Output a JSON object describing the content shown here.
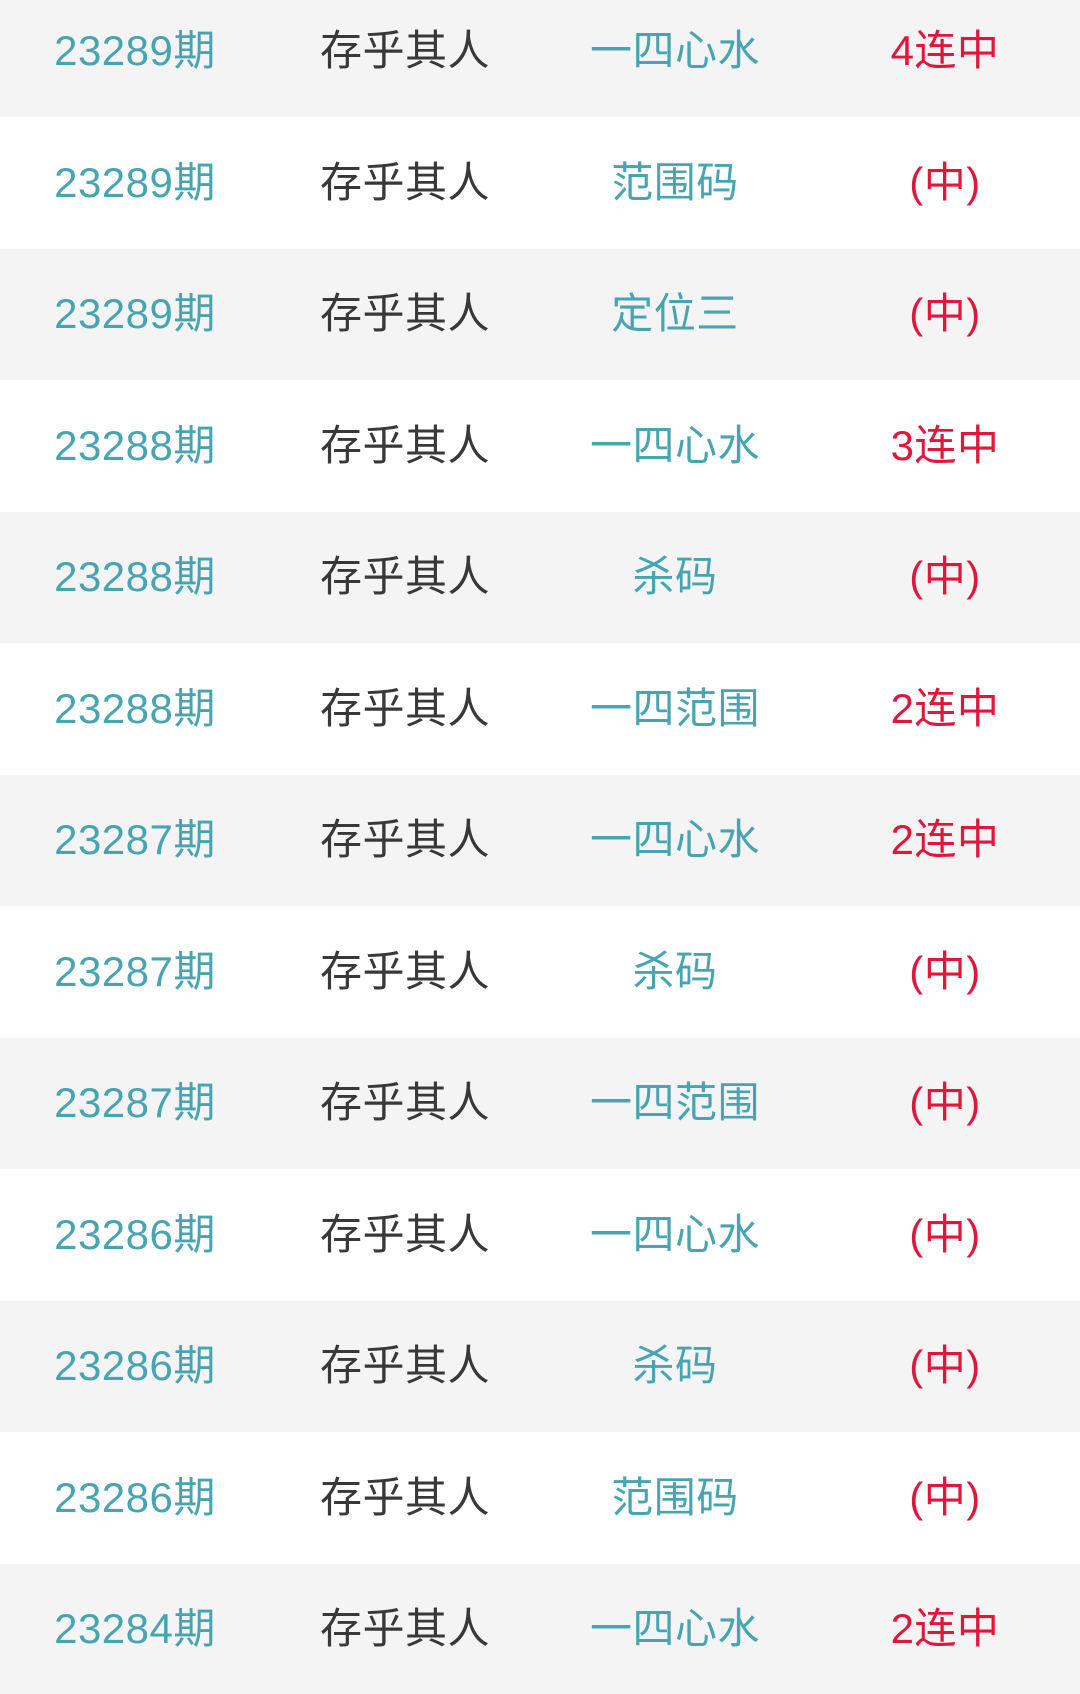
{
  "colors": {
    "accent_teal": "#47a5b1",
    "accent_red": "#e1163c",
    "text_dark": "#383838",
    "row_alt_background": "#f4f4f5",
    "row_background": "#ffffff"
  },
  "history_list": {
    "columns": [
      "period",
      "expert_name",
      "play_type",
      "result"
    ],
    "rows": [
      {
        "period": "23289期",
        "name": "存乎其人",
        "type": "一四心水",
        "result": "4连中"
      },
      {
        "period": "23289期",
        "name": "存乎其人",
        "type": "范围码",
        "result": "(中)"
      },
      {
        "period": "23289期",
        "name": "存乎其人",
        "type": "定位三",
        "result": "(中)"
      },
      {
        "period": "23288期",
        "name": "存乎其人",
        "type": "一四心水",
        "result": "3连中"
      },
      {
        "period": "23288期",
        "name": "存乎其人",
        "type": "杀码",
        "result": "(中)"
      },
      {
        "period": "23288期",
        "name": "存乎其人",
        "type": "一四范围",
        "result": "2连中"
      },
      {
        "period": "23287期",
        "name": "存乎其人",
        "type": "一四心水",
        "result": "2连中"
      },
      {
        "period": "23287期",
        "name": "存乎其人",
        "type": "杀码",
        "result": "(中)"
      },
      {
        "period": "23287期",
        "name": "存乎其人",
        "type": "一四范围",
        "result": "(中)"
      },
      {
        "period": "23286期",
        "name": "存乎其人",
        "type": "一四心水",
        "result": "(中)"
      },
      {
        "period": "23286期",
        "name": "存乎其人",
        "type": "杀码",
        "result": "(中)"
      },
      {
        "period": "23286期",
        "name": "存乎其人",
        "type": "范围码",
        "result": "(中)"
      },
      {
        "period": "23284期",
        "name": "存乎其人",
        "type": "一四心水",
        "result": "2连中"
      }
    ]
  }
}
